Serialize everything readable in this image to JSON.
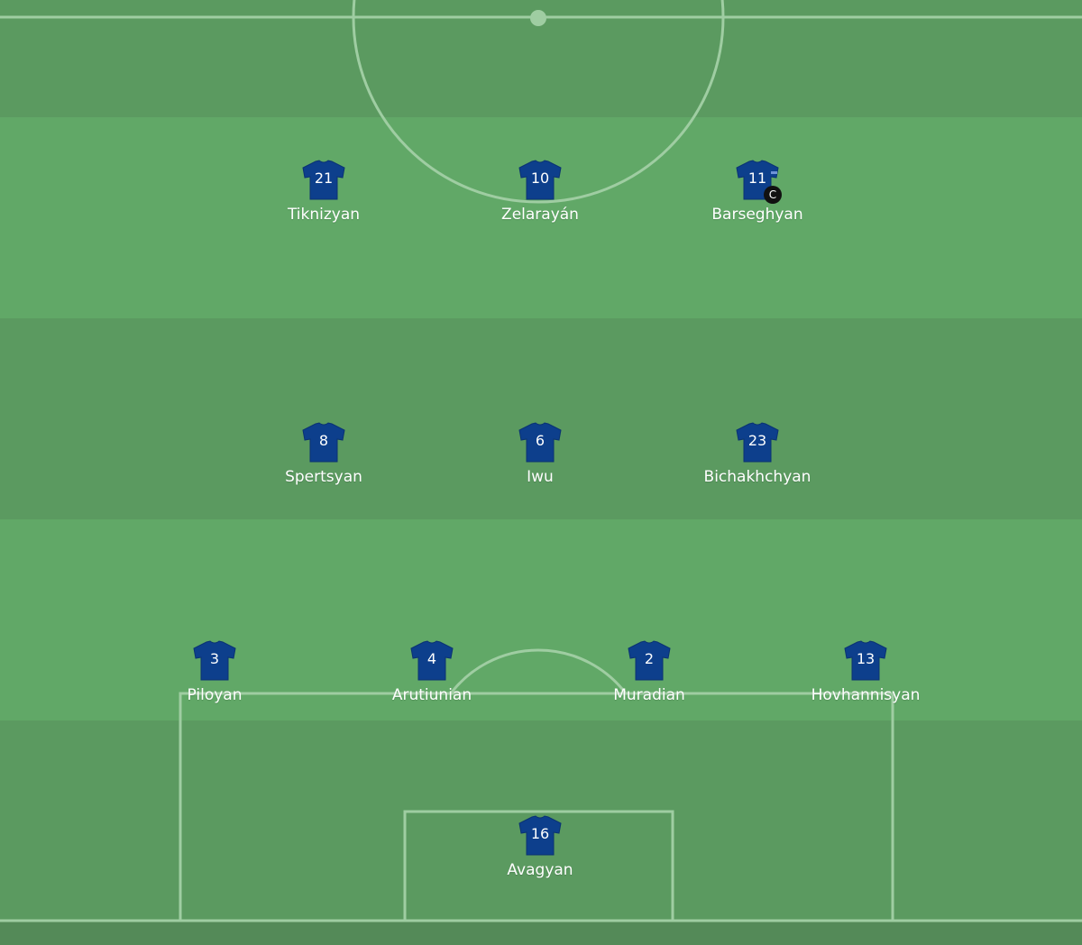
{
  "colors": {
    "stripe_dark": "#5b9a60",
    "stripe_light": "#61a867",
    "shirt": "#0d3f8c",
    "lines": "#9fcda2"
  },
  "players": [
    {
      "number": "21",
      "name": "Tiknizyan",
      "row": 0,
      "col": 359,
      "captain": false
    },
    {
      "number": "10",
      "name": "Zelarayán",
      "row": 0,
      "col": 599,
      "captain": false
    },
    {
      "number": "11",
      "name": "Barseghyan",
      "row": 0,
      "col": 840,
      "captain": true,
      "captain_label": "C"
    },
    {
      "number": "8",
      "name": "Spertsyan",
      "row": 1,
      "col": 359,
      "captain": false
    },
    {
      "number": "6",
      "name": "Iwu",
      "row": 1,
      "col": 599,
      "captain": false
    },
    {
      "number": "23",
      "name": "Bichakhchyan",
      "row": 1,
      "col": 840,
      "captain": false
    },
    {
      "number": "3",
      "name": "Piloyan",
      "row": 2,
      "col": 238,
      "captain": false
    },
    {
      "number": "4",
      "name": "Arutiunian",
      "row": 2,
      "col": 479,
      "captain": false
    },
    {
      "number": "2",
      "name": "Muradian",
      "row": 2,
      "col": 720,
      "captain": false
    },
    {
      "number": "13",
      "name": "Hovhannisyan",
      "row": 2,
      "col": 960,
      "captain": false
    },
    {
      "number": "16",
      "name": "Avagyan",
      "row": 3,
      "col": 599,
      "captain": false
    }
  ]
}
